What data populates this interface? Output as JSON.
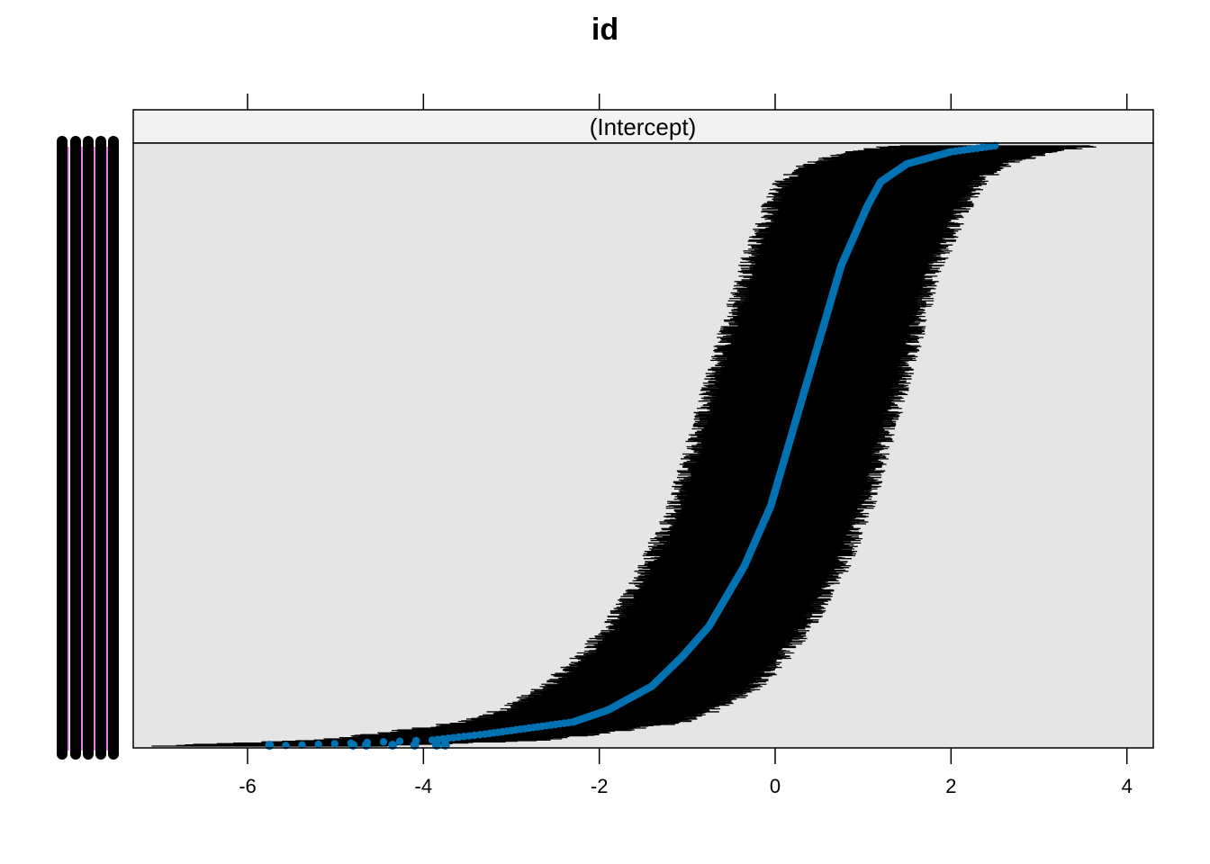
{
  "chart_data": {
    "type": "scatter",
    "subtype": "caterpillar-dotplot",
    "title": "id",
    "panel_strip_label": "(Intercept)",
    "xlabel": "",
    "ylabel": "",
    "xlim": [
      -7.3,
      4.3
    ],
    "x_ticks": [
      -6,
      -4,
      -2,
      0,
      2,
      4
    ],
    "x_tick_labels": [
      "-6",
      "-4",
      "-2",
      "0",
      "2",
      "4"
    ],
    "n_levels": 1000,
    "estimate_quantile_curve": {
      "q": [
        0.0,
        0.01,
        0.02,
        0.04,
        0.06,
        0.1,
        0.15,
        0.2,
        0.3,
        0.4,
        0.5,
        0.6,
        0.7,
        0.8,
        0.85,
        0.9,
        0.94,
        0.97,
        0.99,
        1.0
      ],
      "estimate": [
        -5.75,
        -3.9,
        -3.3,
        -2.3,
        -1.9,
        -1.4,
        -1.05,
        -0.75,
        -0.35,
        -0.05,
        0.15,
        0.35,
        0.55,
        0.75,
        0.9,
        1.05,
        1.2,
        1.5,
        2.0,
        2.5
      ]
    },
    "lower_outliers": [
      -5.75,
      -4.8,
      -4.65,
      -4.35,
      -4.1,
      -3.85,
      -3.75
    ],
    "interval_halfwidth_curve": {
      "q": [
        0.0,
        0.05,
        0.1,
        0.2,
        0.5,
        0.8,
        0.9,
        0.95,
        1.0
      ],
      "halfwidth": [
        1.3,
        1.22,
        1.18,
        1.12,
        1.08,
        1.08,
        1.1,
        1.12,
        1.15
      ]
    },
    "grid": false,
    "colors": {
      "point": "#0072b2",
      "interval": "#000000",
      "panel_background": "#e5e5e5",
      "strip_background": "#f2f2f2",
      "left_ticks_accent": "#cc00cc"
    }
  }
}
